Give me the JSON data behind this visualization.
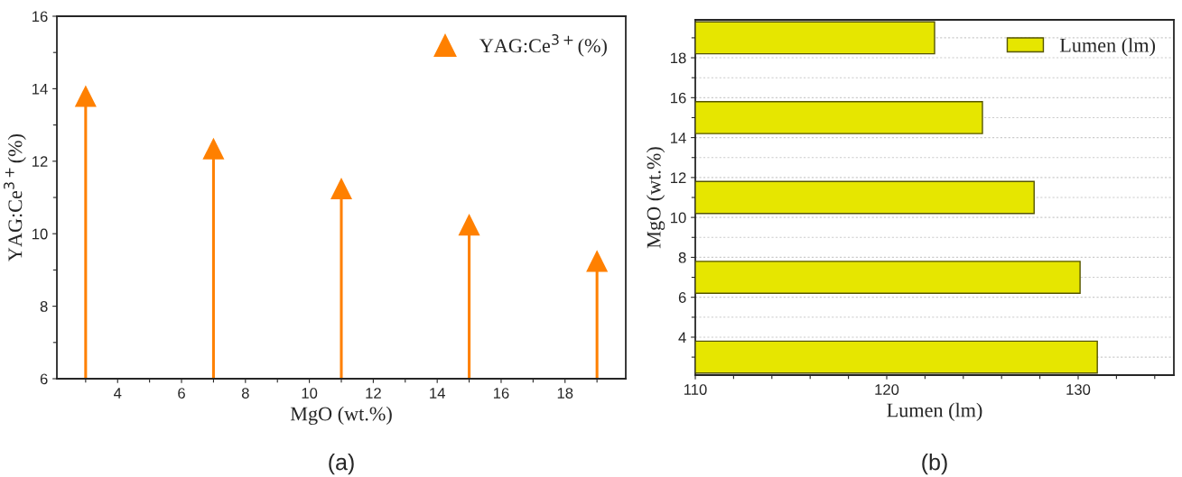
{
  "chart_data": [
    {
      "type": "lollipop",
      "xlabel": "MgO (wt.%)",
      "ylabel": "YAG:Ce$^{3+}$(%)",
      "annotations": [
        "(a)"
      ],
      "x": [
        3,
        7,
        11,
        15,
        19
      ],
      "series": [
        {
          "name": "YAG:Ce$^{3+}$(%)",
          "color": "#ff8000",
          "values": [
            13.8,
            12.35,
            11.25,
            10.25,
            9.25
          ]
        }
      ],
      "marker": "triangle",
      "legend": "top right",
      "xlim": [
        2.1,
        19.9
      ],
      "xticks": [
        {
          "value": 3,
          "label": null
        },
        4,
        {
          "value": 5,
          "label": null
        },
        6,
        {
          "value": 7,
          "label": null
        },
        8,
        {
          "value": 9,
          "label": null
        },
        10,
        {
          "value": 11,
          "label": null
        },
        12,
        {
          "value": 13,
          "label": null
        },
        14,
        {
          "value": 15,
          "label": null
        },
        16,
        {
          "value": 17,
          "label": null
        },
        18,
        {
          "value": 19,
          "label": null
        }
      ],
      "ylim": [
        6,
        16
      ],
      "yticks": [
        6,
        {
          "value": 7,
          "label": null
        },
        8,
        {
          "value": 9,
          "label": null
        },
        10,
        {
          "value": 11,
          "label": null
        },
        12,
        {
          "value": 13,
          "label": null
        },
        14,
        {
          "value": 15,
          "label": null
        },
        16
      ]
    },
    {
      "type": "bar",
      "orientation": "horizontal",
      "xlabel": "Lumen (lm)",
      "ylabel": "MgO (wt.%)",
      "annotations": [
        "(b)"
      ],
      "x": [
        3,
        7,
        11,
        15,
        19
      ],
      "series": [
        {
          "name": "Lumen (lm)",
          "color": "#e6e600",
          "values": [
            131.0,
            130.1,
            127.7,
            125.0,
            122.5
          ]
        }
      ],
      "legend": "top right",
      "grid": "y",
      "xlim": [
        110,
        135
      ],
      "xticks": [
        110,
        {
          "value": 112,
          "label": null
        },
        {
          "value": 114,
          "label": null
        },
        {
          "value": 116,
          "label": null
        },
        {
          "value": 118,
          "label": null
        },
        120,
        {
          "value": 122,
          "label": null
        },
        {
          "value": 124,
          "label": null
        },
        {
          "value": 126,
          "label": null
        },
        {
          "value": 128,
          "label": null
        },
        130,
        {
          "value": 132,
          "label": null
        },
        {
          "value": 134,
          "label": null
        }
      ],
      "ylim": [
        2.1,
        19.9
      ],
      "yticks": [
        {
          "value": 3,
          "label": null
        },
        4,
        {
          "value": 5,
          "label": null
        },
        6,
        {
          "value": 7,
          "label": null
        },
        8,
        {
          "value": 9,
          "label": null
        },
        10,
        {
          "value": 11,
          "label": null
        },
        12,
        {
          "value": 13,
          "label": null
        },
        14,
        {
          "value": 15,
          "label": null
        },
        16,
        {
          "value": 17,
          "label": null
        },
        18,
        {
          "value": 19,
          "label": null
        }
      ]
    }
  ]
}
